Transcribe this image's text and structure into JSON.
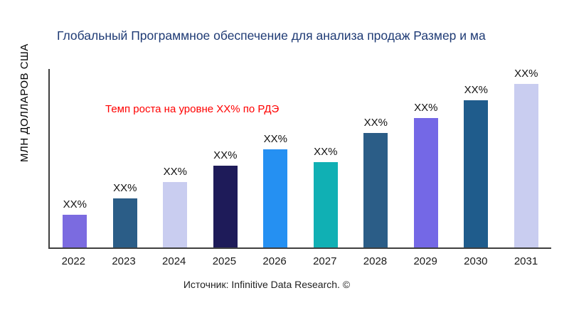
{
  "chart_data": {
    "type": "bar",
    "title": "Глобальный Программное обеспечение для анализа продаж Размер и ма",
    "title_color": "#1f3b75",
    "ylabel": "МЛН ДОЛЛАРОВ США",
    "xlabel": "",
    "annotation": "Темп роста на уровне XX% по РДЭ",
    "annotation_color": "#ff0000",
    "source": "Источник: Infinitive Data Research. ©",
    "categories": [
      "2022",
      "2023",
      "2024",
      "2025",
      "2026",
      "2027",
      "2028",
      "2029",
      "2030",
      "2031"
    ],
    "bar_labels": [
      "XX%",
      "XX%",
      "XX%",
      "XX%",
      "XX%",
      "XX%",
      "XX%",
      "XX%",
      "XX%",
      "XX%"
    ],
    "values_relative": [
      0.2,
      0.3,
      0.4,
      0.5,
      0.6,
      0.52,
      0.7,
      0.79,
      0.9,
      1.0
    ],
    "bar_colors": [
      "#7b6be0",
      "#2b5d87",
      "#c9cdf0",
      "#1e1b59",
      "#2590f2",
      "#10b0b4",
      "#2b5d87",
      "#7468e6",
      "#1f5c8c",
      "#c9cdf0"
    ],
    "axis_color": "#3f3f3f",
    "grid": false,
    "legend": false
  }
}
